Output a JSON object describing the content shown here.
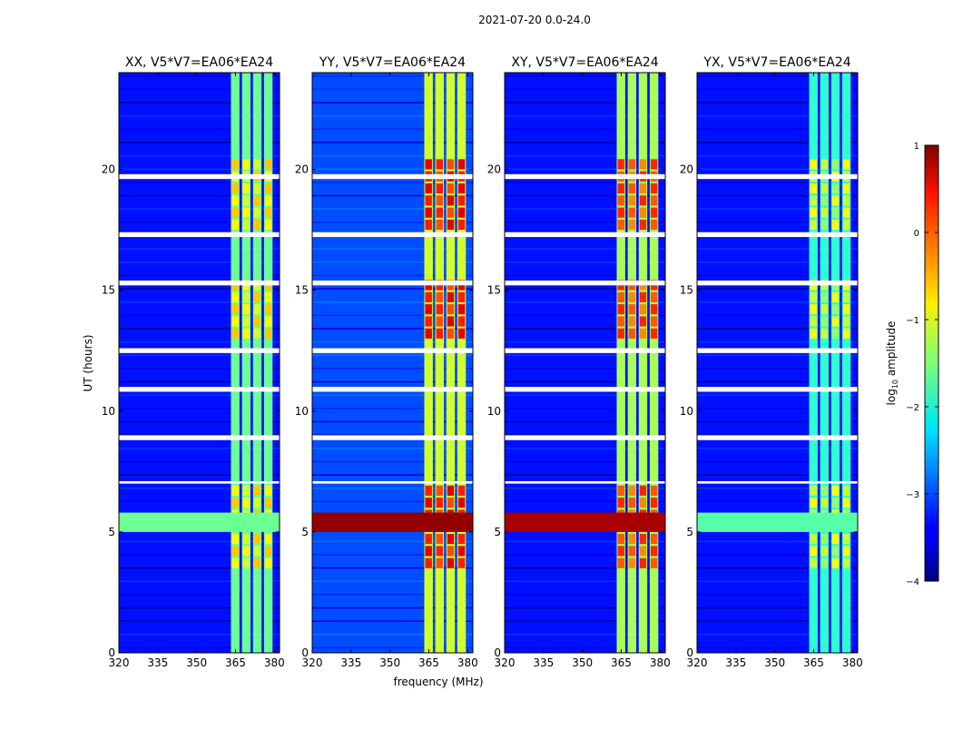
{
  "figure": {
    "suptitle": "2021-07-20 0.0-24.0",
    "xlabel": "frequency (MHz)",
    "ylabel": "UT (hours)"
  },
  "chart_data": {
    "type": "heatmap",
    "title": "2021-07-20 0.0-24.0",
    "xlabel": "frequency (MHz)",
    "ylabel": "UT (hours)",
    "xlim": [
      320,
      382
    ],
    "ylim": [
      0,
      24
    ],
    "x_ticks": [
      320,
      335,
      350,
      365,
      380
    ],
    "x_tick_labels": [
      "320",
      "335",
      "350",
      "365",
      "380"
    ],
    "y_ticks": [
      0,
      5,
      10,
      15,
      20
    ],
    "y_tick_labels": [
      "0",
      "5",
      "10",
      "15",
      "20"
    ],
    "panels": [
      {
        "title": "XX, V5*V7=EA06*EA24",
        "pol": "XX",
        "rfi_level": -0.6,
        "band_level": -1.6,
        "bg_level": -3.3,
        "line_level": -1.6
      },
      {
        "title": "YY, V5*V7=EA06*EA24",
        "pol": "YY",
        "rfi_level": 0.5,
        "band_level": -1.1,
        "bg_level": -3.0,
        "line_level": 0.9
      },
      {
        "title": "XY, V5*V7=EA06*EA24",
        "pol": "XY",
        "rfi_level": 0.2,
        "band_level": -1.3,
        "bg_level": -3.3,
        "line_level": 0.8
      },
      {
        "title": "YX, V5*V7=EA06*EA24",
        "pol": "YX",
        "rfi_level": -0.9,
        "band_level": -1.9,
        "bg_level": -3.3,
        "line_level": -1.7
      }
    ],
    "rfi_band_mhz": [
      363,
      380
    ],
    "strong_rfi_hours": [
      [
        3.5,
        7.0
      ],
      [
        13.0,
        15.2
      ],
      [
        17.5,
        20.2
      ]
    ],
    "broadband_line_hours": [
      5.0,
      5.8
    ],
    "flagged_hours": [
      [
        7.0,
        7.1
      ],
      [
        8.8,
        9.0
      ],
      [
        10.8,
        11.0
      ],
      [
        12.4,
        12.6
      ],
      [
        15.2,
        15.4
      ],
      [
        17.2,
        17.4
      ],
      [
        19.6,
        19.8
      ]
    ],
    "colorbar": {
      "label_base": "log",
      "label_sub": "10",
      "label_rest": " amplitude",
      "range": [
        -4,
        1
      ],
      "ticks": [
        1,
        0,
        -1,
        -2,
        -3,
        -4
      ],
      "tick_labels": [
        "1",
        "0",
        "−1",
        "−2",
        "−3",
        "−4"
      ],
      "colormap": "jet"
    }
  }
}
